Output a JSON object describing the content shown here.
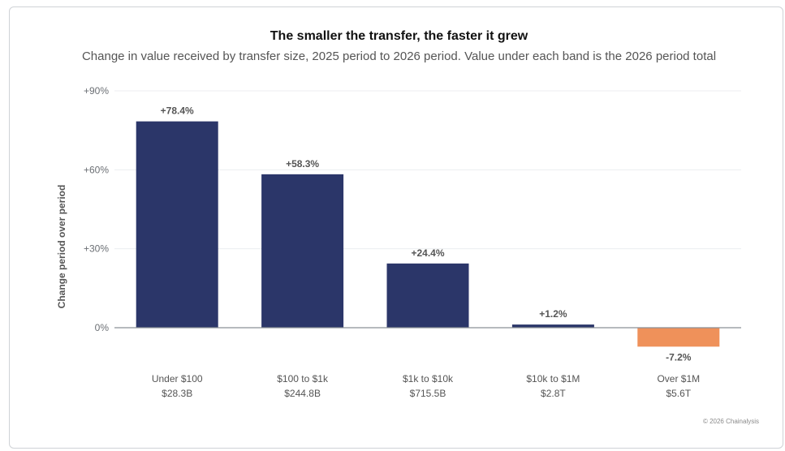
{
  "chart_data": {
    "type": "bar",
    "title": "The smaller the transfer, the faster it grew",
    "subtitle": "Change in value received by transfer size, 2025 period to 2026 period. Value under each band is the 2026 period total",
    "xlabel": "",
    "ylabel": "Change period over period",
    "ylim": [
      -10,
      90
    ],
    "yticks": [
      0,
      30,
      60,
      90
    ],
    "ytick_labels": [
      "0%",
      "+30%",
      "+60%",
      "+90%"
    ],
    "grid": true,
    "categories": [
      "Under $100",
      "$100 to $1k",
      "$1k to $10k",
      "$10k to $1M",
      "Over $1M"
    ],
    "category_totals": [
      "$28.3B",
      "$244.8B",
      "$715.5B",
      "$2.8T",
      "$5.6T"
    ],
    "values": [
      78.4,
      58.3,
      24.4,
      1.2,
      -7.2
    ],
    "value_labels": [
      "+78.4%",
      "+58.3%",
      "+24.4%",
      "+1.2%",
      "-7.2%"
    ],
    "colors": {
      "positive": "#2b3669",
      "negative": "#ef915a",
      "grid": "#eceef0",
      "axis": "#8b9096"
    }
  },
  "credit": "© 2026 Chainalysis"
}
